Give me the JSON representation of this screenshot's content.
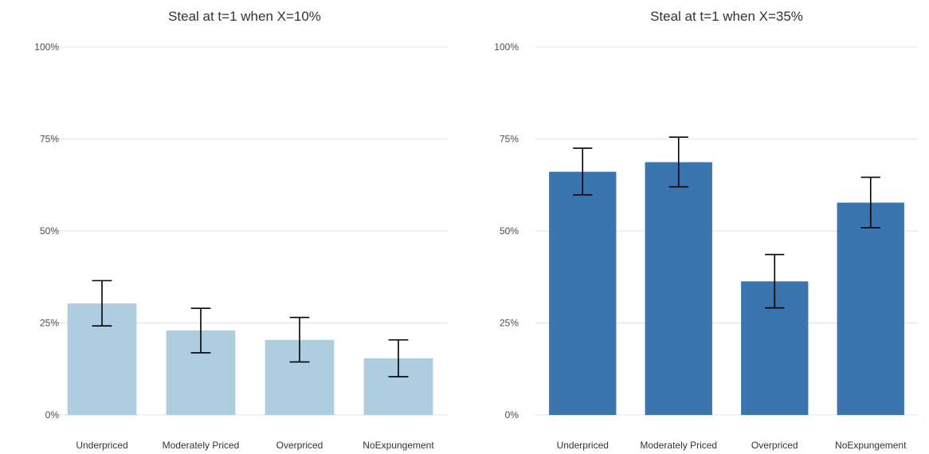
{
  "chart_data": [
    {
      "type": "bar",
      "title": "Steal at t=1 when X=10%",
      "xlabel": "",
      "ylabel": "",
      "categories": [
        "Underpriced",
        "Moderately Priced",
        "Overpriced",
        "NoExpungement"
      ],
      "values": [
        30.3,
        23.0,
        20.4,
        15.4
      ],
      "error_low": [
        24.2,
        16.9,
        14.4,
        10.4
      ],
      "error_high": [
        36.5,
        29.0,
        26.5,
        20.4
      ],
      "ylim": [
        0,
        100
      ],
      "yticks": [
        0,
        25,
        50,
        75,
        100
      ],
      "ytick_labels": [
        "0%",
        "25%",
        "50%",
        "75%",
        "100%"
      ],
      "grid": true,
      "bar_color": "#aecde1"
    },
    {
      "type": "bar",
      "title": "Steal at t=1 when X=35%",
      "xlabel": "",
      "ylabel": "",
      "categories": [
        "Underpriced",
        "Moderately Priced",
        "Overpriced",
        "NoExpungement"
      ],
      "values": [
        66.1,
        68.7,
        36.3,
        57.7
      ],
      "error_low": [
        59.8,
        62.0,
        29.1,
        50.9
      ],
      "error_high": [
        72.5,
        75.5,
        43.6,
        64.6
      ],
      "ylim": [
        0,
        100
      ],
      "yticks": [
        0,
        25,
        50,
        75,
        100
      ],
      "ytick_labels": [
        "0%",
        "25%",
        "50%",
        "75%",
        "100%"
      ],
      "grid": true,
      "bar_color": "#3b75af"
    }
  ]
}
